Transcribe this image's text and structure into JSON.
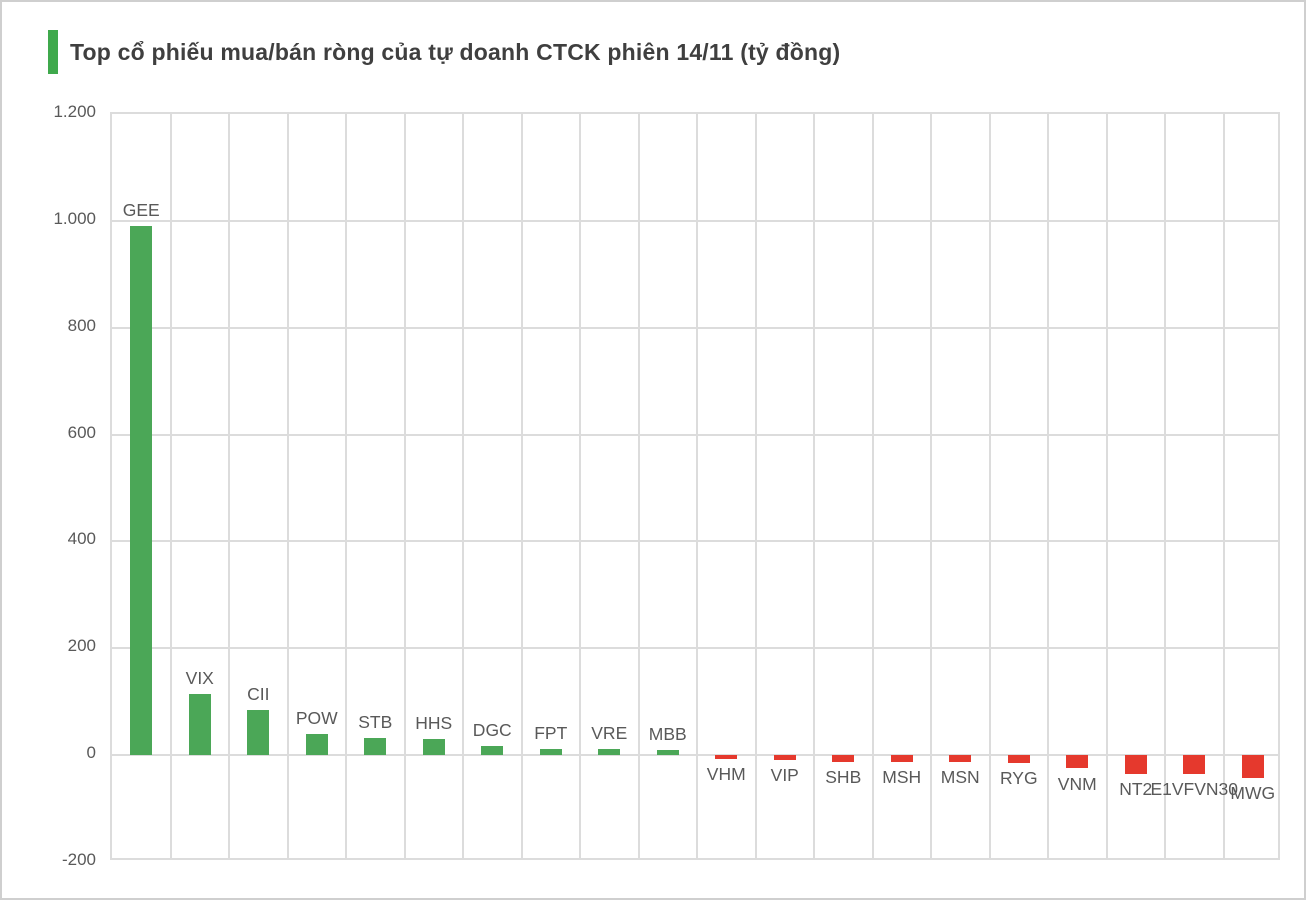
{
  "header": {
    "title": "Top cổ phiếu mua/bán ròng của tự doanh CTCK phiên 14/11 (tỷ đồng)"
  },
  "chart_data": {
    "type": "bar",
    "title": "Top cổ phiếu mua/bán ròng của tự doanh CTCK phiên 14/11 (tỷ đồng)",
    "unit": "tỷ đồng",
    "session_date": "14/11",
    "categories": [
      "GEE",
      "VIX",
      "CII",
      "POW",
      "STB",
      "HHS",
      "DGC",
      "FPT",
      "VRE",
      "MBB",
      "VHM",
      "VIP",
      "SHB",
      "MSH",
      "MSN",
      "RYG",
      "VNM",
      "NT2",
      "E1VFVN30",
      "MWG"
    ],
    "values": [
      990,
      115,
      85,
      40,
      33,
      30,
      18,
      12,
      11,
      9,
      -8,
      -10,
      -12,
      -12,
      -13,
      -15,
      -25,
      -35,
      -35,
      -42
    ],
    "ylim": [
      -200,
      1200
    ],
    "yticks": [
      {
        "value": 1200,
        "label": "1.200"
      },
      {
        "value": 1000,
        "label": "1.000"
      },
      {
        "value": 800,
        "label": "800"
      },
      {
        "value": 600,
        "label": "600"
      },
      {
        "value": 400,
        "label": "400"
      },
      {
        "value": 200,
        "label": "200"
      },
      {
        "value": 0,
        "label": "0"
      },
      {
        "value": -200,
        "label": "-200"
      }
    ],
    "grid": "horizontal-and-vertical",
    "legend": "none",
    "xlabel": "",
    "ylabel": "",
    "colors": {
      "positive": "#4BA757",
      "negative": "#E5392D",
      "accent_bar": "#3FA94C",
      "gridline": "#DCDCDC",
      "axis_text": "#595959",
      "title_text": "#3F3F3F",
      "background": "#FFFFFF",
      "outer_border": "#CFCFCF"
    }
  }
}
